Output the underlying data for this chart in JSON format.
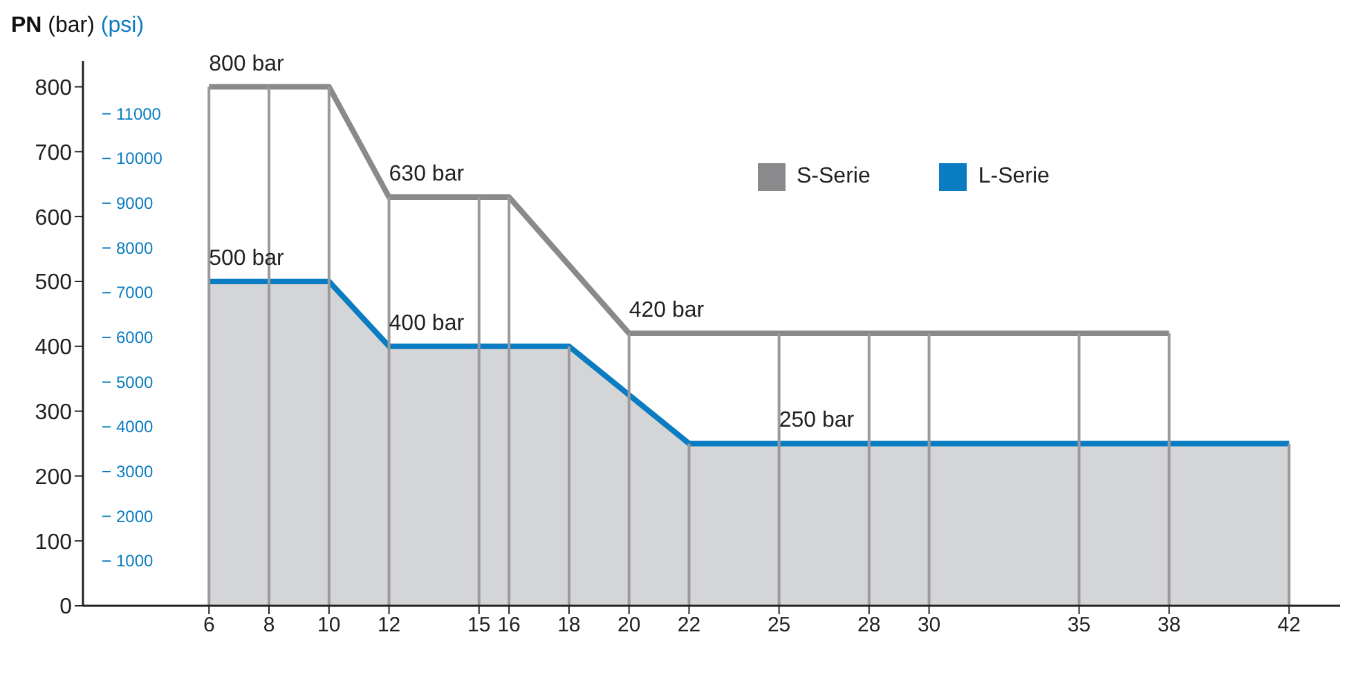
{
  "chart_data": {
    "type": "line",
    "ylabel": "PN (bar)",
    "y2label": "(psi)",
    "xlim": [
      1.8,
      43.7
    ],
    "xticks": [
      6,
      8,
      10,
      12,
      15,
      16,
      18,
      20,
      22,
      25,
      28,
      30,
      35,
      38,
      42
    ],
    "ylim": [
      0,
      840
    ],
    "yticks": [
      0,
      100,
      200,
      300,
      400,
      500,
      600,
      700,
      800
    ],
    "y2lim": [
      0,
      12183
    ],
    "y2ticks": [
      1000,
      2000,
      3000,
      4000,
      5000,
      6000,
      7000,
      8000,
      9000,
      10000,
      11000
    ],
    "grid": "x",
    "legend": "top right",
    "marker": "none",
    "line_style": "solid",
    "series": [
      {
        "name": "S-Serie",
        "type": "line",
        "color": "#8a8a8c",
        "x": [
          6,
          10,
          12,
          16,
          20,
          38
        ],
        "values": [
          800,
          800,
          630,
          630,
          420,
          420
        ]
      },
      {
        "name": "L-Serie",
        "type": "area",
        "color": "#0a7cc1",
        "x": [
          6,
          10,
          12,
          18,
          22,
          42
        ],
        "values": [
          500,
          500,
          400,
          400,
          250,
          250
        ]
      }
    ],
    "annotations": [
      {
        "text": "800 bar",
        "x": 6,
        "y": 800
      },
      {
        "text": "630 bar",
        "x": 12,
        "y": 630
      },
      {
        "text": "500 bar",
        "x": 6,
        "y": 500
      },
      {
        "text": "400 bar",
        "x": 12,
        "y": 400
      },
      {
        "text": "420 bar",
        "x": 20,
        "y": 420
      },
      {
        "text": "250 bar",
        "x": 25,
        "y": 250
      }
    ]
  }
}
